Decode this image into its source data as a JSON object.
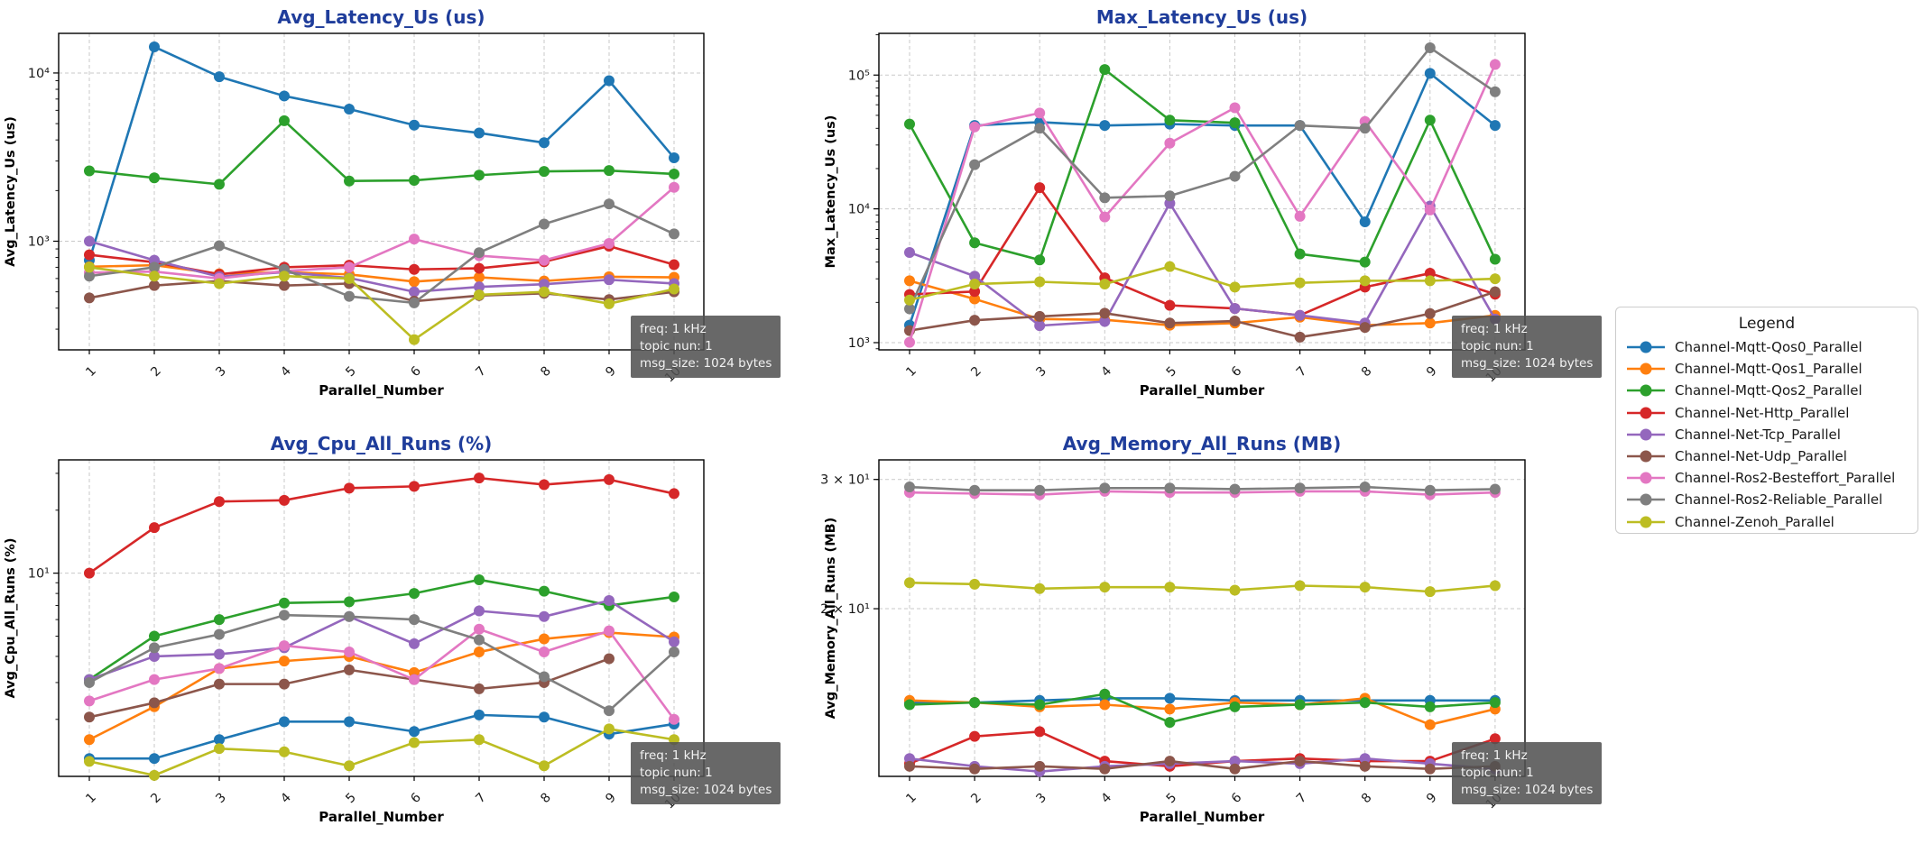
{
  "figure": {
    "background": "#ffffff",
    "title_color": "#1f3d9b",
    "axis_color": "#000000",
    "grid_color": "#c9c9c9",
    "tick_label_color": "#1a1a1a"
  },
  "annotation": {
    "lines": [
      "freq: 1 kHz",
      "topic nun: 1",
      "msg_size: 1024 bytes"
    ],
    "background": "#525252",
    "text_color": "#f2f2f2"
  },
  "legend": {
    "title": "Legend",
    "entries": [
      {
        "label": "Channel-Mqtt-Qos0_Parallel",
        "color": "#1f77b4"
      },
      {
        "label": "Channel-Mqtt-Qos1_Parallel",
        "color": "#ff7f0e"
      },
      {
        "label": "Channel-Mqtt-Qos2_Parallel",
        "color": "#2ca02c"
      },
      {
        "label": "Channel-Net-Http_Parallel",
        "color": "#d62728"
      },
      {
        "label": "Channel-Net-Tcp_Parallel",
        "color": "#9467bd"
      },
      {
        "label": "Channel-Net-Udp_Parallel",
        "color": "#8c564b"
      },
      {
        "label": "Channel-Ros2-Besteffort_Parallel",
        "color": "#e377c2"
      },
      {
        "label": "Channel-Ros2-Reliable_Parallel",
        "color": "#7f7f7f"
      },
      {
        "label": "Channel-Zenoh_Parallel",
        "color": "#bcbd22"
      }
    ]
  },
  "chart_data": [
    {
      "id": "avg-latency",
      "type": "line",
      "title": "Avg_Latency_Us  (us)",
      "ylabel": "Avg_Latency_Us (us)",
      "xlabel": "Parallel_Number",
      "yscale": "log",
      "grid": true,
      "x": [
        1,
        2,
        3,
        4,
        5,
        6,
        7,
        8,
        9,
        10
      ],
      "ylim": [
        226,
        17200
      ],
      "yticks": [
        {
          "value": 1000,
          "label": "10³"
        },
        {
          "value": 10000,
          "label": "10⁴"
        }
      ],
      "series": [
        {
          "name": "Channel-Mqtt-Qos0_Parallel",
          "color": "#1f77b4",
          "values": [
            770,
            14300,
            9500,
            7300,
            6100,
            4900,
            4400,
            3850,
            9000,
            3130
          ]
        },
        {
          "name": "Channel-Mqtt-Qos1_Parallel",
          "color": "#ff7f0e",
          "values": [
            705,
            720,
            640,
            655,
            635,
            575,
            610,
            580,
            615,
            610
          ]
        },
        {
          "name": "Channel-Mqtt-Qos2_Parallel",
          "color": "#2ca02c",
          "values": [
            2620,
            2380,
            2180,
            5200,
            2280,
            2300,
            2470,
            2600,
            2630,
            2510
          ]
        },
        {
          "name": "Channel-Net-Http_Parallel",
          "color": "#d62728",
          "values": [
            830,
            750,
            635,
            700,
            720,
            680,
            690,
            755,
            935,
            725
          ]
        },
        {
          "name": "Channel-Net-Tcp_Parallel",
          "color": "#9467bd",
          "values": [
            1000,
            770,
            615,
            655,
            605,
            500,
            535,
            555,
            590,
            560
          ]
        },
        {
          "name": "Channel-Net-Udp_Parallel",
          "color": "#8c564b",
          "values": [
            460,
            545,
            580,
            545,
            560,
            440,
            475,
            490,
            450,
            500
          ]
        },
        {
          "name": "Channel-Ros2-Besteffort_Parallel",
          "color": "#e377c2",
          "values": [
            650,
            660,
            600,
            665,
            700,
            1030,
            820,
            770,
            970,
            2090
          ]
        },
        {
          "name": "Channel-Ros2-Reliable_Parallel",
          "color": "#7f7f7f",
          "values": [
            620,
            700,
            940,
            680,
            470,
            430,
            855,
            1265,
            1665,
            1105
          ]
        },
        {
          "name": "Channel-Zenoh_Parallel",
          "color": "#bcbd22",
          "values": [
            700,
            620,
            560,
            620,
            600,
            260,
            480,
            500,
            425,
            520
          ]
        }
      ]
    },
    {
      "id": "max-latency",
      "type": "line",
      "title": "Max_Latency_Us  (us)",
      "ylabel": "Max_Latency_Us (us)",
      "xlabel": "Parallel_Number",
      "yscale": "log",
      "grid": true,
      "x": [
        1,
        2,
        3,
        4,
        5,
        6,
        7,
        8,
        9,
        10
      ],
      "ylim": [
        883,
        205000
      ],
      "yticks": [
        {
          "value": 1000,
          "label": "10³"
        },
        {
          "value": 10000,
          "label": "10⁴"
        },
        {
          "value": 100000,
          "label": "10⁵"
        }
      ],
      "series": [
        {
          "name": "Channel-Mqtt-Qos0_Parallel",
          "color": "#1f77b4",
          "values": [
            1350,
            42000,
            44500,
            42000,
            43000,
            42000,
            42000,
            8000,
            103000,
            42000
          ]
        },
        {
          "name": "Channel-Mqtt-Qos1_Parallel",
          "color": "#ff7f0e",
          "values": [
            2900,
            2120,
            1500,
            1480,
            1350,
            1400,
            1550,
            1350,
            1400,
            1600
          ]
        },
        {
          "name": "Channel-Mqtt-Qos2_Parallel",
          "color": "#2ca02c",
          "values": [
            43000,
            5580,
            4150,
            110000,
            46000,
            44000,
            4600,
            4000,
            46000,
            4200
          ]
        },
        {
          "name": "Channel-Net-Http_Parallel",
          "color": "#d62728",
          "values": [
            2290,
            2410,
            14400,
            3050,
            1900,
            1800,
            1600,
            2600,
            3300,
            2300
          ]
        },
        {
          "name": "Channel-Net-Tcp_Parallel",
          "color": "#9467bd",
          "values": [
            4720,
            3140,
            1340,
            1440,
            11000,
            1800,
            1600,
            1400,
            10500,
            1500
          ]
        },
        {
          "name": "Channel-Net-Udp_Parallel",
          "color": "#8c564b",
          "values": [
            1230,
            1470,
            1570,
            1660,
            1400,
            1450,
            1100,
            1300,
            1650,
            2400
          ]
        },
        {
          "name": "Channel-Ros2-Besteffort_Parallel",
          "color": "#e377c2",
          "values": [
            1005,
            41000,
            52000,
            8700,
            31000,
            57000,
            8800,
            45000,
            9800,
            120000
          ]
        },
        {
          "name": "Channel-Ros2-Reliable_Parallel",
          "color": "#7f7f7f",
          "values": [
            1790,
            21400,
            40000,
            12100,
            12500,
            17500,
            42000,
            40000,
            160000,
            75000
          ]
        },
        {
          "name": "Channel-Zenoh_Parallel",
          "color": "#bcbd22",
          "values": [
            2080,
            2740,
            2850,
            2740,
            3700,
            2600,
            2800,
            2900,
            2900,
            3000
          ]
        }
      ]
    },
    {
      "id": "avg-cpu",
      "type": "line",
      "title": "Avg_Cpu_All_Runs  (%)",
      "ylabel": "Avg_Cpu_All_Runs (%)",
      "xlabel": "Parallel_Number",
      "yscale": "log",
      "grid": true,
      "x": [
        1,
        2,
        3,
        4,
        5,
        6,
        7,
        8,
        9,
        10
      ],
      "ylim": [
        1.068,
        34.8
      ],
      "yticks": [
        {
          "value": 10,
          "label": "10¹"
        }
      ],
      "series": [
        {
          "name": "Channel-Mqtt-Qos0_Parallel",
          "color": "#1f77b4",
          "values": [
            1.3,
            1.3,
            1.6,
            1.95,
            1.95,
            1.75,
            2.1,
            2.05,
            1.7,
            1.9
          ]
        },
        {
          "name": "Channel-Mqtt-Qos1_Parallel",
          "color": "#ff7f0e",
          "values": [
            1.6,
            2.3,
            3.5,
            3.8,
            4.0,
            3.35,
            4.2,
            4.85,
            5.2,
            4.95
          ]
        },
        {
          "name": "Channel-Mqtt-Qos2_Parallel",
          "color": "#2ca02c",
          "values": [
            3.1,
            5.0,
            6.0,
            7.2,
            7.3,
            8.0,
            9.3,
            8.2,
            7.0,
            7.7
          ]
        },
        {
          "name": "Channel-Net-Http_Parallel",
          "color": "#d62728",
          "values": [
            10.0,
            16.5,
            22.0,
            22.3,
            25.5,
            26.0,
            28.5,
            26.5,
            28.0,
            24.0
          ]
        },
        {
          "name": "Channel-Net-Tcp_Parallel",
          "color": "#9467bd",
          "values": [
            3.1,
            4.0,
            4.1,
            4.4,
            6.2,
            4.6,
            6.6,
            6.2,
            7.4,
            4.7
          ]
        },
        {
          "name": "Channel-Net-Udp_Parallel",
          "color": "#8c564b",
          "values": [
            2.05,
            2.4,
            2.95,
            2.95,
            3.45,
            3.1,
            2.8,
            3.0,
            3.9,
            null
          ]
        },
        {
          "name": "Channel-Ros2-Besteffort_Parallel",
          "color": "#e377c2",
          "values": [
            2.45,
            3.1,
            3.5,
            4.5,
            4.2,
            3.1,
            5.4,
            4.2,
            5.3,
            2.0
          ]
        },
        {
          "name": "Channel-Ros2-Reliable_Parallel",
          "color": "#7f7f7f",
          "values": [
            3.0,
            4.4,
            5.1,
            6.3,
            6.2,
            6.0,
            4.8,
            3.2,
            2.2,
            4.2
          ]
        },
        {
          "name": "Channel-Zenoh_Parallel",
          "color": "#bcbd22",
          "values": [
            1.26,
            1.08,
            1.45,
            1.4,
            1.2,
            1.55,
            1.6,
            1.2,
            1.8,
            1.6
          ]
        }
      ]
    },
    {
      "id": "avg-memory",
      "type": "line",
      "title": "Avg_Memory_All_Runs  (MB)",
      "ylabel": "Avg_Memory_All_Runs (MB)",
      "xlabel": "Parallel_Number",
      "yscale": "log",
      "grid": true,
      "x": [
        1,
        2,
        3,
        4,
        5,
        6,
        7,
        8,
        9,
        10
      ],
      "ylim": [
        11.82,
        31.9
      ],
      "yticks": [
        {
          "value": 20,
          "label": "2 × 10¹"
        },
        {
          "value": 30,
          "label": "3 × 10¹"
        }
      ],
      "series": [
        {
          "name": "Channel-Mqtt-Qos0_Parallel",
          "color": "#1f77b4",
          "values": [
            14.9,
            14.9,
            15.0,
            15.1,
            15.1,
            15.0,
            15.0,
            15.0,
            15.0,
            15.0
          ]
        },
        {
          "name": "Channel-Mqtt-Qos1_Parallel",
          "color": "#ff7f0e",
          "values": [
            15.0,
            14.9,
            14.7,
            14.8,
            14.6,
            14.9,
            14.8,
            15.1,
            13.9,
            14.6
          ]
        },
        {
          "name": "Channel-Mqtt-Qos2_Parallel",
          "color": "#2ca02c",
          "values": [
            14.8,
            14.9,
            14.8,
            15.3,
            14.0,
            14.7,
            14.8,
            14.9,
            14.7,
            14.9
          ]
        },
        {
          "name": "Channel-Net-Http_Parallel",
          "color": "#d62728",
          "values": [
            12.3,
            13.4,
            13.6,
            12.4,
            12.2,
            12.4,
            12.5,
            12.4,
            12.4,
            13.3
          ]
        },
        {
          "name": "Channel-Net-Tcp_Parallel",
          "color": "#9467bd",
          "values": [
            12.5,
            12.2,
            12.0,
            12.2,
            12.3,
            12.4,
            12.3,
            12.5,
            12.3,
            12.1
          ]
        },
        {
          "name": "Channel-Net-Udp_Parallel",
          "color": "#8c564b",
          "values": [
            12.2,
            12.1,
            12.2,
            12.1,
            12.4,
            12.1,
            12.4,
            12.2,
            12.1,
            12.2
          ]
        },
        {
          "name": "Channel-Ros2-Besteffort_Parallel",
          "color": "#e377c2",
          "values": [
            28.8,
            28.7,
            28.6,
            28.9,
            28.8,
            28.8,
            28.9,
            28.9,
            28.6,
            28.8
          ]
        },
        {
          "name": "Channel-Ros2-Reliable_Parallel",
          "color": "#7f7f7f",
          "values": [
            29.3,
            29.0,
            29.0,
            29.2,
            29.2,
            29.1,
            29.2,
            29.3,
            29.0,
            29.1
          ]
        },
        {
          "name": "Channel-Zenoh_Parallel",
          "color": "#bcbd22",
          "values": [
            21.7,
            21.6,
            21.3,
            21.4,
            21.4,
            21.2,
            21.5,
            21.4,
            21.1,
            21.5
          ]
        }
      ]
    }
  ]
}
